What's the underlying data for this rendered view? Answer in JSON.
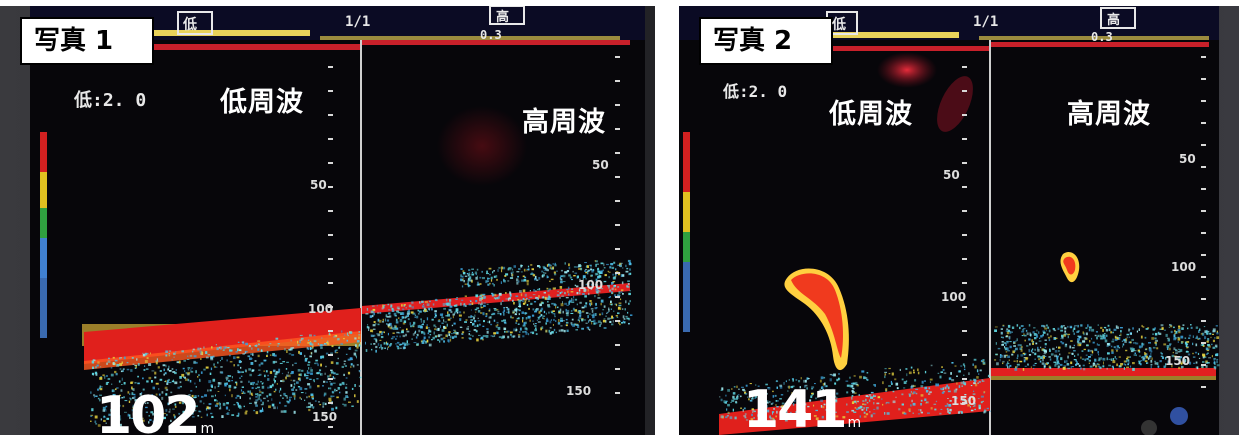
{
  "photo1": {
    "caption": "写真 1",
    "low_freq_label": "低周波",
    "high_freq_label": "高周波",
    "header_low": "低",
    "header_high": "高",
    "header_range": "1/1",
    "header_ch": "0.3",
    "setting_text": "低:2. 0",
    "depth_value": "102",
    "depth_unit": "m",
    "scale_left": [
      "50",
      "100",
      "150"
    ],
    "scale_right": [
      "50",
      "100",
      "150"
    ]
  },
  "photo2": {
    "caption": "写真 2",
    "low_freq_label": "低周波",
    "high_freq_label": "高周波",
    "header_low": "低",
    "header_high": "高",
    "header_range": "1/1",
    "header_ch": "0.3",
    "setting_text": "低:2. 0",
    "depth_value": "141",
    "depth_unit": "m",
    "scale_left": [
      "50",
      "100",
      "150"
    ],
    "scale_right": [
      "50",
      "100",
      "150"
    ]
  },
  "colors": {
    "screen_bg": "#07060a",
    "bottom_echo": "#e0201c",
    "fish_echo": "#f03a1e",
    "noise_cyan": "#5fd6e0",
    "noise_yellow": "#e6d240",
    "header_bar": "#e8d25a"
  }
}
